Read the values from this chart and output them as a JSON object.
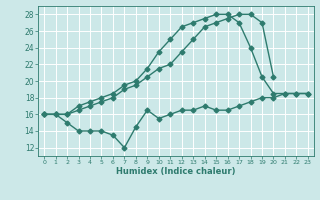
{
  "background_color": "#cce8e8",
  "grid_color": "#ffffff",
  "line_color": "#2e7b6e",
  "line_width": 1.0,
  "marker": "D",
  "marker_size": 2.5,
  "xlabel": "Humidex (Indice chaleur)",
  "xlim": [
    -0.5,
    23.5
  ],
  "ylim": [
    11,
    29
  ],
  "yticks": [
    12,
    14,
    16,
    18,
    20,
    22,
    24,
    26,
    28
  ],
  "xticks": [
    0,
    1,
    2,
    3,
    4,
    5,
    6,
    7,
    8,
    9,
    10,
    11,
    12,
    13,
    14,
    15,
    16,
    17,
    18,
    19,
    20,
    21,
    22,
    23
  ],
  "series1_x": [
    0,
    1,
    2,
    3,
    4,
    5,
    6,
    7,
    8,
    9,
    10,
    11,
    12,
    13,
    14,
    15,
    16,
    17,
    18,
    19,
    20,
    21,
    22,
    23
  ],
  "series1_y": [
    16.0,
    16.0,
    16.0,
    17.0,
    17.5,
    18.0,
    18.5,
    19.5,
    20.0,
    21.5,
    23.5,
    25.0,
    26.5,
    27.0,
    27.5,
    28.0,
    28.0,
    27.0,
    24.0,
    20.5,
    18.5,
    18.5,
    18.5,
    18.5
  ],
  "series2_x": [
    0,
    1,
    2,
    3,
    4,
    5,
    6,
    7,
    8,
    9,
    10,
    11,
    12,
    13,
    14,
    15,
    16,
    17,
    18,
    19,
    20
  ],
  "series2_y": [
    16.0,
    16.0,
    16.0,
    16.5,
    17.0,
    17.5,
    18.0,
    19.0,
    19.5,
    20.5,
    21.5,
    22.0,
    23.5,
    25.0,
    26.5,
    27.0,
    27.5,
    28.0,
    28.0,
    27.0,
    20.5
  ],
  "series3_x": [
    0,
    1,
    2,
    3,
    4,
    5,
    6,
    7,
    8,
    9,
    10,
    11,
    12,
    13,
    14,
    15,
    16,
    17,
    18,
    19,
    20,
    21,
    22,
    23
  ],
  "series3_y": [
    16.0,
    16.0,
    15.0,
    14.0,
    14.0,
    14.0,
    13.5,
    12.0,
    14.5,
    16.5,
    15.5,
    16.0,
    16.5,
    16.5,
    17.0,
    16.5,
    16.5,
    17.0,
    17.5,
    18.0,
    18.0,
    18.5,
    18.5,
    18.5
  ]
}
